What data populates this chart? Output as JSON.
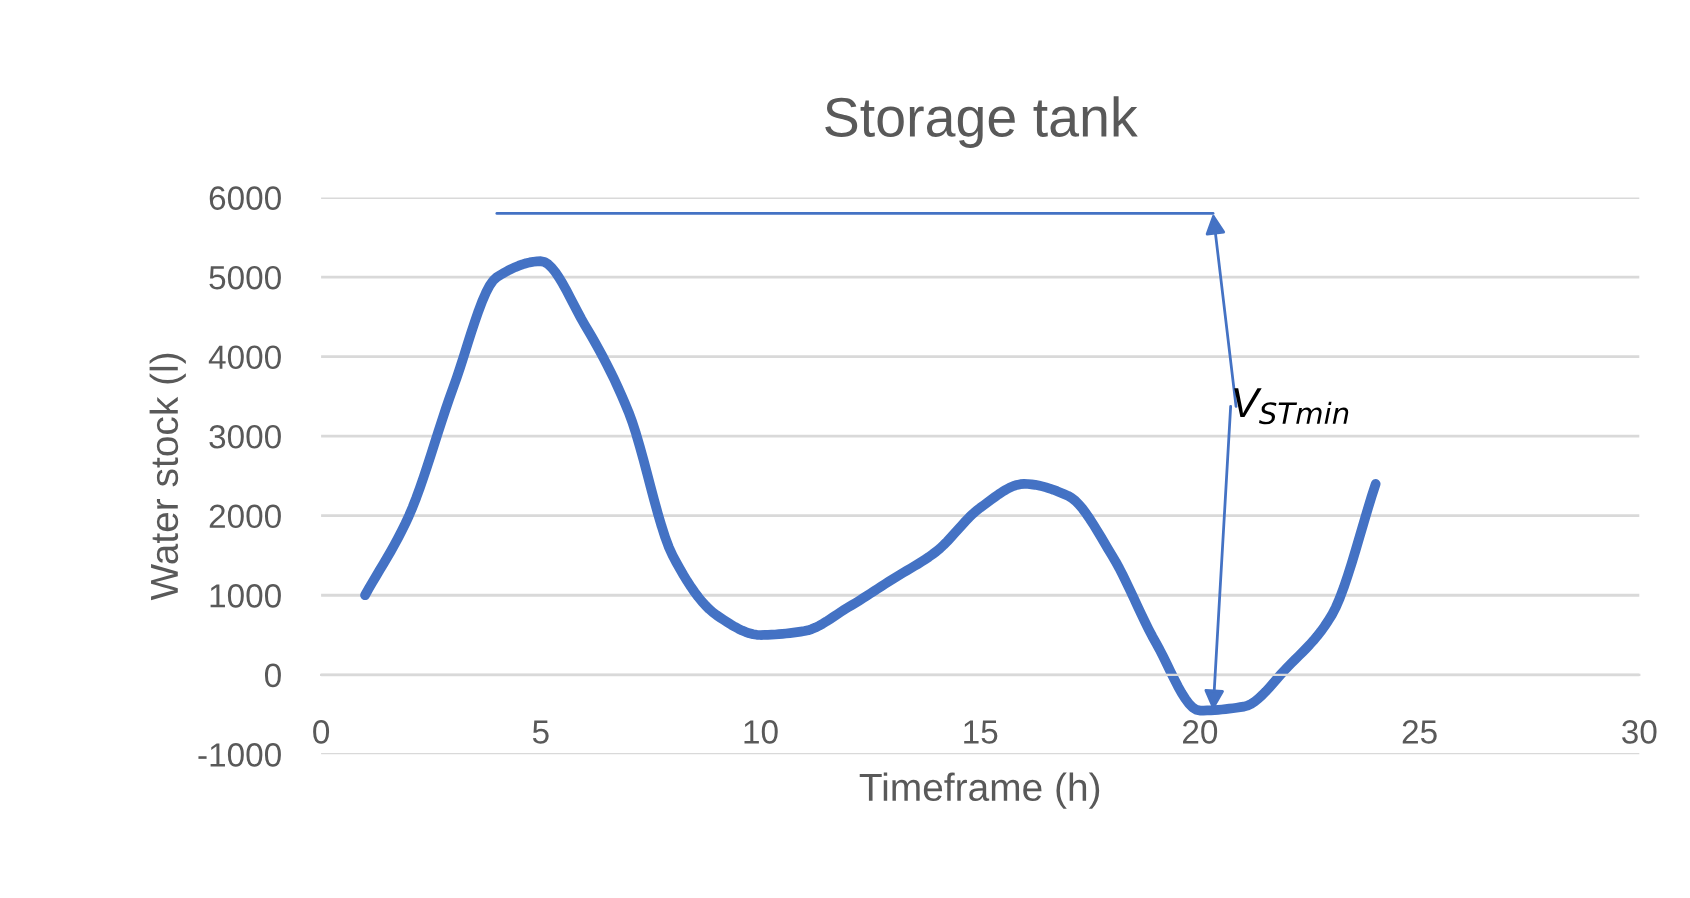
{
  "chart_data": {
    "type": "line",
    "title": "Storage tank",
    "xlabel": "Timeframe (h)",
    "ylabel": "Water stock (l)",
    "series": [
      {
        "color": "#4472c4",
        "x": [
          1,
          2,
          3,
          4,
          5,
          6,
          7,
          8,
          9,
          10,
          11,
          12,
          13,
          14,
          15,
          16,
          17,
          18,
          19,
          20,
          21,
          22,
          23,
          24
        ],
        "values": [
          1000,
          2000,
          3600,
          5000,
          5200,
          4400,
          3300,
          1500,
          750,
          500,
          550,
          850,
          1200,
          1550,
          2100,
          2400,
          2250,
          1500,
          400,
          -450,
          -400,
          100,
          750,
          2400
        ]
      },
      {
        "color": "#4472c4",
        "x": [
          4,
          20.3
        ],
        "values": [
          5800,
          5800
        ],
        "line_style": "solid"
      }
    ],
    "annotations": [
      {
        "text": "V$_{STmin}$",
        "x": 20.3,
        "y": 5800
      }
    ],
    "xlim": [
      0,
      30
    ],
    "xticks": [
      0,
      5,
      10,
      15,
      20,
      25,
      30
    ],
    "ylim": [
      -1000,
      6000
    ],
    "yticks": [
      -1000,
      0,
      1000,
      2000,
      3000,
      4000,
      5000,
      6000
    ],
    "grid": "y",
    "legend": false,
    "marker": "none"
  }
}
